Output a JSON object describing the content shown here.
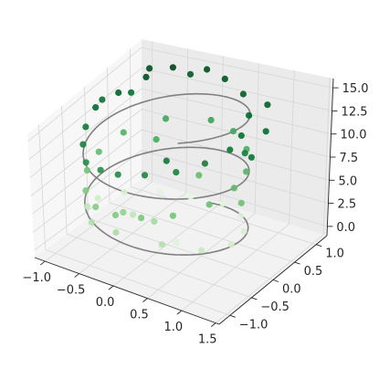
{
  "chart_data": {
    "type": "scatter",
    "projection": "3d",
    "title": "",
    "xlabel": "",
    "ylabel": "",
    "zlabel": "",
    "grid": true,
    "x_ticks": [
      "−1.0",
      "−0.5",
      "0.0",
      "0.5",
      "1.0",
      "1.5"
    ],
    "y_ticks": [
      "−1.0",
      "−0.5",
      "0.0",
      "0.5",
      "1.0"
    ],
    "z_ticks": [
      "0.0",
      "2.5",
      "5.0",
      "7.5",
      "10.0",
      "12.5",
      "15.0"
    ],
    "x_tick_values": [
      -1.0,
      -0.5,
      0.0,
      0.5,
      1.0,
      1.5
    ],
    "y_tick_values": [
      -1.0,
      -0.5,
      0.0,
      0.5,
      1.0
    ],
    "z_tick_values": [
      0.0,
      2.5,
      5.0,
      7.5,
      10.0,
      12.5,
      15.0
    ],
    "xlim": [
      -1.15,
      1.55
    ],
    "ylim": [
      -1.25,
      1.25
    ],
    "zlim": [
      -1.0,
      16.0
    ],
    "line": {
      "description": "3D helix x=sin(z), y=cos(z), z from 0 to 15",
      "color": "#808080",
      "z_range": [
        0,
        15
      ]
    },
    "scatter": {
      "colormap": "Greens",
      "color_by": "z",
      "marker_color_low": "#e5f5e0",
      "marker_color_high": "#00441b",
      "points": [
        {
          "x": 0.2,
          "y": 0.98,
          "z": 14.8
        },
        {
          "x": 0.55,
          "y": 0.84,
          "z": 14.2
        },
        {
          "x": 0.85,
          "y": 0.5,
          "z": 13.6
        },
        {
          "x": 1.0,
          "y": 0.1,
          "z": 13.1
        },
        {
          "x": 1.03,
          "y": -0.2,
          "z": 12.7
        },
        {
          "x": 0.9,
          "y": -0.55,
          "z": 12.3
        },
        {
          "x": 0.65,
          "y": -0.8,
          "z": 11.9
        },
        {
          "x": 0.3,
          "y": -0.95,
          "z": 11.6
        },
        {
          "x": -0.05,
          "y": -1.0,
          "z": 11.3
        },
        {
          "x": -0.35,
          "y": -0.92,
          "z": 11.0
        },
        {
          "x": 1.25,
          "y": 0.25,
          "z": 13.4
        },
        {
          "x": 1.18,
          "y": -0.1,
          "z": 12.2
        },
        {
          "x": 1.4,
          "y": -0.3,
          "z": 12.8
        },
        {
          "x": 0.95,
          "y": 0.75,
          "z": 14.0
        },
        {
          "x": 0.45,
          "y": -0.7,
          "z": 12.5
        },
        {
          "x": -0.1,
          "y": 1.05,
          "z": 15.1
        },
        {
          "x": -0.3,
          "y": 1.0,
          "z": 14.4
        },
        {
          "x": -0.45,
          "y": 0.85,
          "z": 15.6
        },
        {
          "x": -0.7,
          "y": 0.65,
          "z": 14.9
        },
        {
          "x": -0.9,
          "y": 0.35,
          "z": 14.0
        },
        {
          "x": -1.0,
          "y": 0.0,
          "z": 13.6
        },
        {
          "x": -0.95,
          "y": -0.3,
          "z": 12.6
        },
        {
          "x": -0.8,
          "y": -0.6,
          "z": 12.0
        },
        {
          "x": -1.1,
          "y": 0.3,
          "z": 13.0
        },
        {
          "x": -0.6,
          "y": -0.85,
          "z": 11.2
        },
        {
          "x": -0.85,
          "y": 0.55,
          "z": 13.2
        },
        {
          "x": -0.75,
          "y": 0.8,
          "z": 15.2
        },
        {
          "x": 0.0,
          "y": 1.0,
          "z": 9.6
        },
        {
          "x": 0.35,
          "y": 0.95,
          "z": 9.2
        },
        {
          "x": 0.7,
          "y": 0.7,
          "z": 8.8
        },
        {
          "x": 0.95,
          "y": 0.3,
          "z": 8.3
        },
        {
          "x": 1.0,
          "y": -0.05,
          "z": 7.9
        },
        {
          "x": 0.9,
          "y": -0.45,
          "z": 7.4
        },
        {
          "x": 0.6,
          "y": -0.8,
          "z": 6.9
        },
        {
          "x": 0.25,
          "y": -0.97,
          "z": 6.6
        },
        {
          "x": -0.1,
          "y": -1.0,
          "z": 6.3
        },
        {
          "x": -0.45,
          "y": -0.9,
          "z": 6.1
        },
        {
          "x": -0.75,
          "y": -0.65,
          "z": 6.4
        },
        {
          "x": -0.95,
          "y": -0.3,
          "z": 7.0
        },
        {
          "x": -1.0,
          "y": 0.05,
          "z": 7.7
        },
        {
          "x": -0.9,
          "y": 0.45,
          "z": 8.6
        },
        {
          "x": -0.55,
          "y": 0.85,
          "z": 9.3
        },
        {
          "x": 1.2,
          "y": -0.2,
          "z": 7.2
        },
        {
          "x": -0.15,
          "y": -0.75,
          "z": 5.5
        },
        {
          "x": 0.4,
          "y": 0.1,
          "z": 7.6
        },
        {
          "x": -0.4,
          "y": 0.4,
          "z": 9.0
        },
        {
          "x": 0.2,
          "y": -0.6,
          "z": 4.6
        },
        {
          "x": 0.5,
          "y": -0.9,
          "z": 3.8
        },
        {
          "x": 0.85,
          "y": -0.55,
          "z": 2.6
        },
        {
          "x": 1.0,
          "y": -0.1,
          "z": 1.9
        },
        {
          "x": 0.9,
          "y": 0.35,
          "z": 1.4
        },
        {
          "x": 0.6,
          "y": 0.75,
          "z": 0.9
        },
        {
          "x": 0.2,
          "y": 0.98,
          "z": 0.5
        },
        {
          "x": -0.25,
          "y": 0.95,
          "z": 0.3
        },
        {
          "x": -0.6,
          "y": 0.8,
          "z": 0.6
        },
        {
          "x": -0.9,
          "y": 0.45,
          "z": 1.2
        },
        {
          "x": -1.0,
          "y": 0.0,
          "z": 2.0
        },
        {
          "x": -0.9,
          "y": -0.4,
          "z": 2.9
        },
        {
          "x": -0.55,
          "y": -0.85,
          "z": 3.7
        },
        {
          "x": -0.1,
          "y": -1.0,
          "z": 4.2
        },
        {
          "x": 0.3,
          "y": -0.25,
          "z": 1.0
        },
        {
          "x": -0.3,
          "y": -0.3,
          "z": 3.0
        }
      ]
    }
  }
}
